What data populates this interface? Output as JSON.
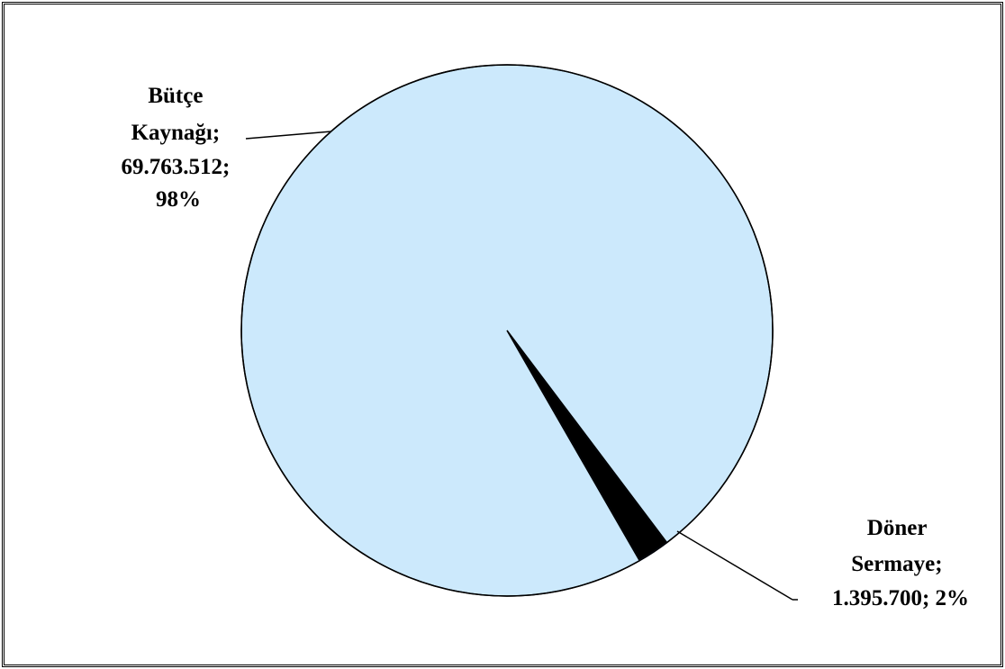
{
  "chart_data": {
    "type": "pie",
    "title": "",
    "start_angle_deg": 143,
    "slices": [
      {
        "name": "Döner Sermaye",
        "value": 1395700,
        "percent": 2,
        "color": "#000000",
        "label_lines": [
          "Döner",
          "Sermaye;",
          "1.395.700; 2%"
        ]
      },
      {
        "name": "Bütçe Kaynağı",
        "value": 69763512,
        "percent": 98,
        "color": "#cce9fc",
        "label_lines": [
          "Bütçe",
          "Kaynağı;",
          "69.763.512;",
          "98%"
        ]
      }
    ],
    "legend": "none"
  }
}
